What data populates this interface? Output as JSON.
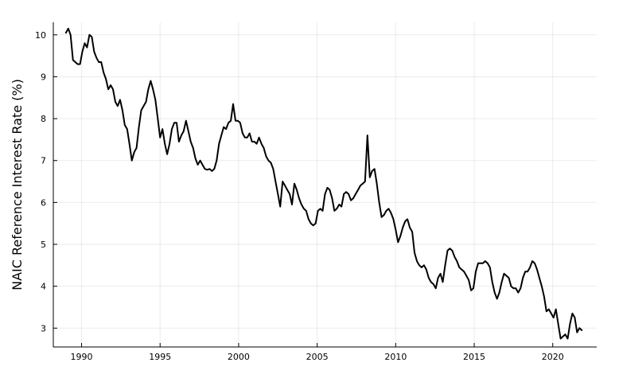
{
  "chart_data": {
    "type": "line",
    "ylabel": "NAIC Reference Interest Rate (%)",
    "xlabel": "",
    "xlim": [
      1988.2,
      2022.8
    ],
    "ylim": [
      2.55,
      10.3
    ],
    "xticks": [
      1990,
      1995,
      2000,
      2005,
      2010,
      2015,
      2020
    ],
    "yticks": [
      3,
      4,
      5,
      6,
      7,
      8,
      9,
      10
    ],
    "grid": true,
    "legend": "none",
    "line_color": "#000000",
    "series": [
      {
        "x": [
          1989.0,
          1989.15,
          1989.3,
          1989.45,
          1989.6,
          1989.75,
          1989.9,
          1990.05,
          1990.2,
          1990.35,
          1990.5,
          1990.65,
          1990.8,
          1990.95,
          1991.1,
          1991.25,
          1991.4,
          1991.55,
          1991.7,
          1991.85,
          1992.0,
          1992.15,
          1992.3,
          1992.45,
          1992.6,
          1992.75,
          1992.9,
          1993.05,
          1993.2,
          1993.35,
          1993.5,
          1993.65,
          1993.8,
          1993.95,
          1994.1,
          1994.25,
          1994.4,
          1994.55,
          1994.7,
          1994.85,
          1995.0,
          1995.15,
          1995.3,
          1995.45,
          1995.6,
          1995.75,
          1995.9,
          1996.05,
          1996.2,
          1996.35,
          1996.5,
          1996.65,
          1996.8,
          1996.95,
          1997.1,
          1997.25,
          1997.4,
          1997.55,
          1997.7,
          1997.85,
          1998.0,
          1998.15,
          1998.3,
          1998.45,
          1998.6,
          1998.75,
          1998.9,
          1999.05,
          1999.2,
          1999.35,
          1999.5,
          1999.65,
          1999.8,
          1999.95,
          2000.1,
          2000.25,
          2000.4,
          2000.55,
          2000.7,
          2000.85,
          2001.0,
          2001.15,
          2001.3,
          2001.45,
          2001.6,
          2001.75,
          2001.9,
          2002.05,
          2002.2,
          2002.35,
          2002.5,
          2002.65,
          2002.8,
          2002.95,
          2003.1,
          2003.25,
          2003.4,
          2003.55,
          2003.7,
          2003.85,
          2004.0,
          2004.15,
          2004.3,
          2004.45,
          2004.6,
          2004.75,
          2004.9,
          2005.05,
          2005.2,
          2005.35,
          2005.5,
          2005.65,
          2005.8,
          2005.95,
          2006.1,
          2006.25,
          2006.4,
          2006.55,
          2006.7,
          2006.85,
          2007.0,
          2007.15,
          2007.3,
          2007.45,
          2007.6,
          2007.75,
          2007.9,
          2008.05,
          2008.2,
          2008.35,
          2008.5,
          2008.65,
          2008.8,
          2008.95,
          2009.1,
          2009.25,
          2009.4,
          2009.55,
          2009.7,
          2009.85,
          2010.0,
          2010.15,
          2010.3,
          2010.45,
          2010.6,
          2010.75,
          2010.9,
          2011.05,
          2011.2,
          2011.35,
          2011.5,
          2011.65,
          2011.8,
          2011.95,
          2012.1,
          2012.25,
          2012.4,
          2012.55,
          2012.7,
          2012.85,
          2013.0,
          2013.15,
          2013.3,
          2013.45,
          2013.6,
          2013.75,
          2013.9,
          2014.05,
          2014.2,
          2014.35,
          2014.5,
          2014.65,
          2014.8,
          2014.95,
          2015.1,
          2015.25,
          2015.4,
          2015.55,
          2015.7,
          2015.85,
          2016.0,
          2016.15,
          2016.3,
          2016.45,
          2016.6,
          2016.75,
          2016.9,
          2017.05,
          2017.2,
          2017.35,
          2017.5,
          2017.65,
          2017.8,
          2017.95,
          2018.1,
          2018.25,
          2018.4,
          2018.55,
          2018.7,
          2018.85,
          2019.0,
          2019.15,
          2019.3,
          2019.45,
          2019.6,
          2019.75,
          2019.9,
          2020.05,
          2020.2,
          2020.35,
          2020.5,
          2020.65,
          2020.8,
          2020.95,
          2021.1,
          2021.25,
          2021.4,
          2021.55,
          2021.7,
          2021.85
        ],
        "values": [
          10.05,
          10.15,
          10.0,
          9.4,
          9.35,
          9.3,
          9.3,
          9.6,
          9.8,
          9.7,
          10.0,
          9.95,
          9.6,
          9.45,
          9.35,
          9.35,
          9.1,
          8.95,
          8.7,
          8.8,
          8.7,
          8.4,
          8.3,
          8.45,
          8.2,
          7.85,
          7.75,
          7.4,
          7.0,
          7.2,
          7.3,
          7.8,
          8.2,
          8.3,
          8.4,
          8.7,
          8.9,
          8.7,
          8.45,
          8.0,
          7.55,
          7.75,
          7.4,
          7.15,
          7.4,
          7.75,
          7.9,
          7.9,
          7.45,
          7.6,
          7.7,
          7.95,
          7.7,
          7.45,
          7.3,
          7.05,
          6.9,
          7.0,
          6.9,
          6.8,
          6.78,
          6.8,
          6.75,
          6.8,
          7.0,
          7.4,
          7.6,
          7.8,
          7.75,
          7.9,
          7.95,
          8.35,
          7.95,
          7.95,
          7.9,
          7.65,
          7.55,
          7.55,
          7.65,
          7.45,
          7.45,
          7.4,
          7.55,
          7.4,
          7.3,
          7.1,
          7.0,
          6.95,
          6.8,
          6.5,
          6.2,
          5.9,
          6.5,
          6.4,
          6.3,
          6.2,
          5.95,
          6.45,
          6.3,
          6.1,
          5.95,
          5.85,
          5.8,
          5.6,
          5.5,
          5.45,
          5.5,
          5.8,
          5.85,
          5.8,
          6.2,
          6.35,
          6.3,
          6.1,
          5.8,
          5.85,
          5.95,
          5.9,
          6.2,
          6.25,
          6.2,
          6.05,
          6.1,
          6.2,
          6.3,
          6.4,
          6.45,
          6.5,
          7.6,
          6.6,
          6.75,
          6.8,
          6.45,
          6.0,
          5.65,
          5.7,
          5.8,
          5.85,
          5.75,
          5.6,
          5.35,
          5.05,
          5.2,
          5.4,
          5.55,
          5.6,
          5.4,
          5.3,
          4.8,
          4.6,
          4.5,
          4.45,
          4.5,
          4.4,
          4.2,
          4.1,
          4.05,
          3.95,
          4.2,
          4.3,
          4.1,
          4.5,
          4.85,
          4.9,
          4.85,
          4.7,
          4.6,
          4.45,
          4.4,
          4.35,
          4.25,
          4.15,
          3.9,
          3.95,
          4.35,
          4.55,
          4.55,
          4.55,
          4.6,
          4.55,
          4.45,
          4.1,
          3.85,
          3.7,
          3.85,
          4.1,
          4.3,
          4.25,
          4.2,
          4.0,
          3.95,
          3.95,
          3.85,
          3.95,
          4.2,
          4.35,
          4.35,
          4.45,
          4.6,
          4.55,
          4.4,
          4.2,
          4.0,
          3.75,
          3.4,
          3.45,
          3.35,
          3.25,
          3.45,
          3.1,
          2.75,
          2.8,
          2.85,
          2.75,
          3.1,
          3.35,
          3.25,
          2.9,
          3.0,
          2.95
        ]
      }
    ]
  }
}
